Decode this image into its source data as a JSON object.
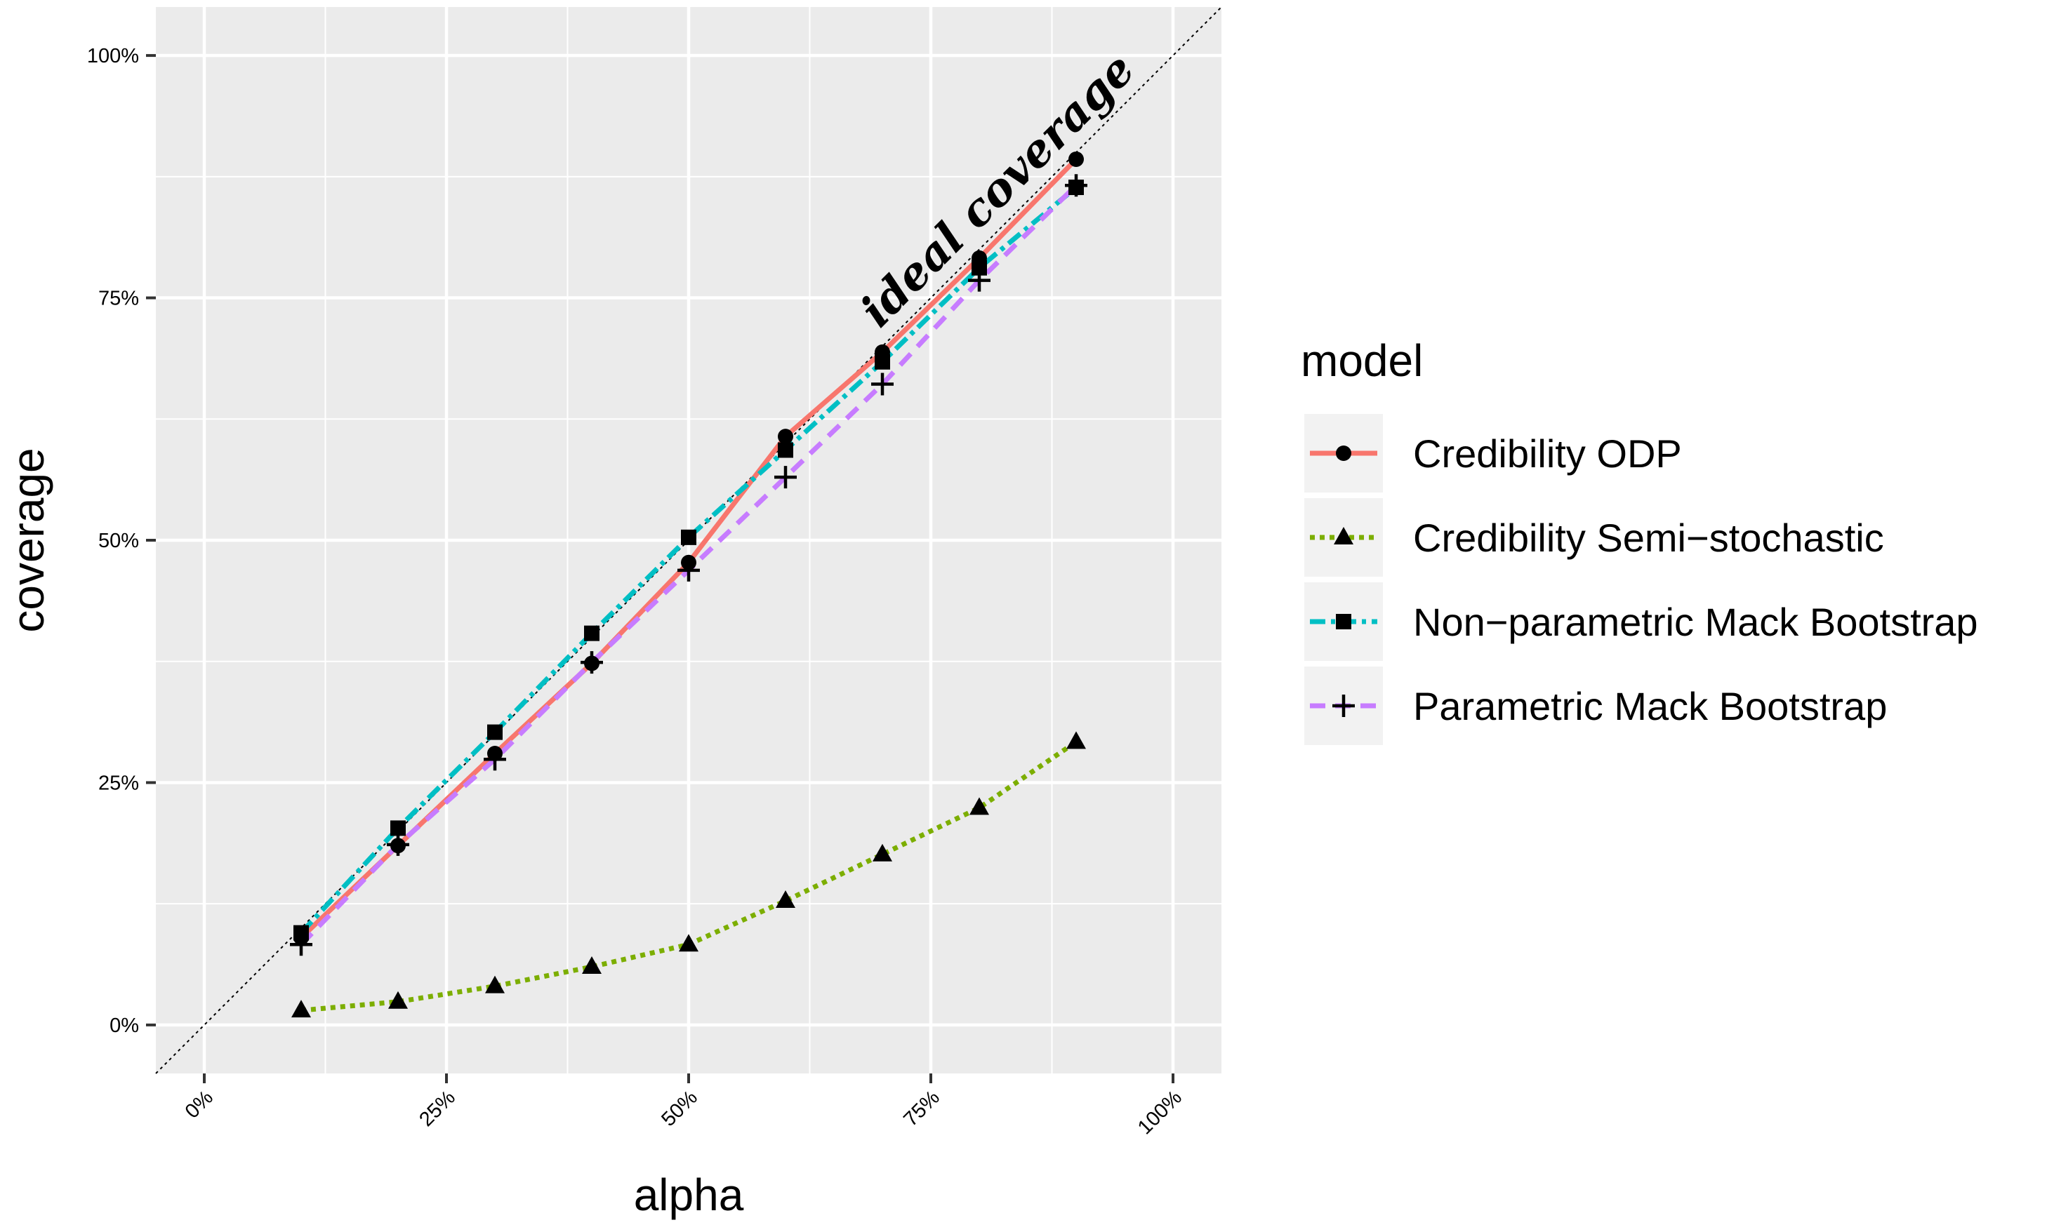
{
  "chart_data": {
    "type": "line",
    "xlabel": "alpha",
    "ylabel": "coverage",
    "x_ticks": [
      "0%",
      "25%",
      "50%",
      "75%",
      "100%"
    ],
    "y_ticks": [
      "0%",
      "25%",
      "50%",
      "75%",
      "100%"
    ],
    "xlim": [
      -0.05,
      1.05
    ],
    "ylim": [
      -0.05,
      1.05
    ],
    "grid": true,
    "legend_title": "model",
    "legend_position": "right",
    "annotation": "ideal coverage",
    "reference_line": {
      "slope": 1,
      "intercept": 0,
      "style": "dotted"
    },
    "x": [
      0.1,
      0.2,
      0.3,
      0.4,
      0.5,
      0.6,
      0.7,
      0.8,
      0.9
    ],
    "series": [
      {
        "name": "Credibility ODP",
        "color": "#F8766D",
        "dash": "solid",
        "marker": "circle",
        "values": [
          0.09,
          0.185,
          0.28,
          0.373,
          0.477,
          0.607,
          0.694,
          0.791,
          0.893
        ]
      },
      {
        "name": "Credibility Semi−stochastic",
        "color": "#7CAE00",
        "dash": "dotted",
        "marker": "triangle",
        "values": [
          0.015,
          0.024,
          0.04,
          0.06,
          0.083,
          0.128,
          0.176,
          0.224,
          0.292
        ]
      },
      {
        "name": "Non−parametric Mack Bootstrap",
        "color": "#00BFC4",
        "dash": "dashdot",
        "marker": "square",
        "values": [
          0.095,
          0.203,
          0.302,
          0.404,
          0.503,
          0.593,
          0.684,
          0.781,
          0.864
        ]
      },
      {
        "name": "Parametric Mack Bootstrap",
        "color": "#C77CFF",
        "dash": "dashed",
        "marker": "plus",
        "values": [
          0.083,
          0.186,
          0.274,
          0.374,
          0.469,
          0.565,
          0.661,
          0.768,
          0.866
        ]
      }
    ]
  }
}
